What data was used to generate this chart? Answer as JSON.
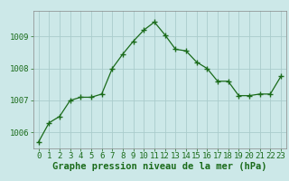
{
  "x": [
    0,
    1,
    2,
    3,
    4,
    5,
    6,
    7,
    8,
    9,
    10,
    11,
    12,
    13,
    14,
    15,
    16,
    17,
    18,
    19,
    20,
    21,
    22,
    23
  ],
  "y": [
    1005.7,
    1006.3,
    1006.5,
    1007.0,
    1007.1,
    1007.1,
    1007.2,
    1008.0,
    1008.45,
    1008.85,
    1009.2,
    1009.45,
    1009.05,
    1008.6,
    1008.55,
    1008.2,
    1008.0,
    1007.6,
    1007.6,
    1007.15,
    1007.15,
    1007.2,
    1007.2,
    1007.75
  ],
  "ylim": [
    1005.5,
    1009.8
  ],
  "yticks": [
    1006,
    1007,
    1008,
    1009
  ],
  "xticks": [
    0,
    1,
    2,
    3,
    4,
    5,
    6,
    7,
    8,
    9,
    10,
    11,
    12,
    13,
    14,
    15,
    16,
    17,
    18,
    19,
    20,
    21,
    22,
    23
  ],
  "line_color": "#1a6b1a",
  "marker": "+",
  "marker_size": 4,
  "background_color": "#cce8e8",
  "grid_color": "#aacccc",
  "xlabel": "Graphe pression niveau de la mer (hPa)",
  "xlabel_color": "#1a6b1a",
  "tick_color": "#1a6b1a",
  "tick_fontsize": 6.5,
  "xlabel_fontsize": 7.5
}
